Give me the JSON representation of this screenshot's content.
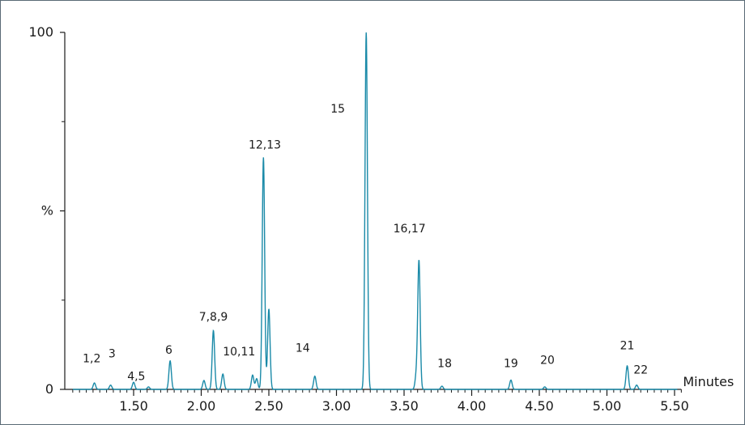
{
  "chart_data": {
    "type": "line",
    "title": "",
    "xlabel": "Minutes",
    "ylabel": "%",
    "xlim": [
      1.0,
      5.55
    ],
    "ylim": [
      0,
      100
    ],
    "x_ticks": [
      1.5,
      2.0,
      2.5,
      3.0,
      3.5,
      4.0,
      4.5,
      5.0,
      5.5
    ],
    "x_tick_labels": [
      "1.50",
      "2.00",
      "2.50",
      "3.00",
      "3.50",
      "4.00",
      "4.50",
      "5.00",
      "5.50"
    ],
    "y_ticks": [
      0,
      50,
      100
    ],
    "y_tick_labels": [
      "0",
      "%",
      "100"
    ],
    "grid": false,
    "line_color": "#1a8aa8",
    "peaks": [
      {
        "rt": 1.21,
        "height": 1.8
      },
      {
        "rt": 1.33,
        "height": 1.2
      },
      {
        "rt": 1.5,
        "height": 2.0
      },
      {
        "rt": 1.61,
        "height": 0.7
      },
      {
        "rt": 1.77,
        "height": 8.0
      },
      {
        "rt": 2.02,
        "height": 2.5
      },
      {
        "rt": 2.09,
        "height": 16.5
      },
      {
        "rt": 2.16,
        "height": 4.3
      },
      {
        "rt": 2.38,
        "height": 4.0
      },
      {
        "rt": 2.41,
        "height": 3.0
      },
      {
        "rt": 2.46,
        "height": 65.0
      },
      {
        "rt": 2.5,
        "height": 22.5
      },
      {
        "rt": 2.84,
        "height": 3.7
      },
      {
        "rt": 3.22,
        "height": 100.0
      },
      {
        "rt": 3.59,
        "height": 3.7
      },
      {
        "rt": 3.61,
        "height": 36.0
      },
      {
        "rt": 3.78,
        "height": 0.9
      },
      {
        "rt": 4.29,
        "height": 2.6
      },
      {
        "rt": 4.54,
        "height": 0.7
      },
      {
        "rt": 5.15,
        "height": 6.6
      },
      {
        "rt": 5.22,
        "height": 1.2
      }
    ],
    "annotations": [
      {
        "text": "1,2",
        "x": 1.19,
        "y": 7.6
      },
      {
        "text": "3",
        "x": 1.34,
        "y": 9.0
      },
      {
        "text": "4,5",
        "x": 1.52,
        "y": 2.6
      },
      {
        "text": "6",
        "x": 1.76,
        "y": 10.0
      },
      {
        "text": "7,8,9",
        "x": 2.09,
        "y": 19.3
      },
      {
        "text": "10,11",
        "x": 2.28,
        "y": 9.5
      },
      {
        "text": "12,13",
        "x": 2.47,
        "y": 67.5
      },
      {
        "text": "14",
        "x": 2.75,
        "y": 10.6
      },
      {
        "text": "15",
        "x": 3.01,
        "y": 77.6
      },
      {
        "text": "16,17",
        "x": 3.54,
        "y": 44.0
      },
      {
        "text": "18",
        "x": 3.8,
        "y": 6.2
      },
      {
        "text": "19",
        "x": 4.29,
        "y": 6.2
      },
      {
        "text": "20",
        "x": 4.56,
        "y": 7.1
      },
      {
        "text": "21",
        "x": 5.15,
        "y": 11.2
      },
      {
        "text": "22",
        "x": 5.25,
        "y": 4.4
      }
    ]
  }
}
